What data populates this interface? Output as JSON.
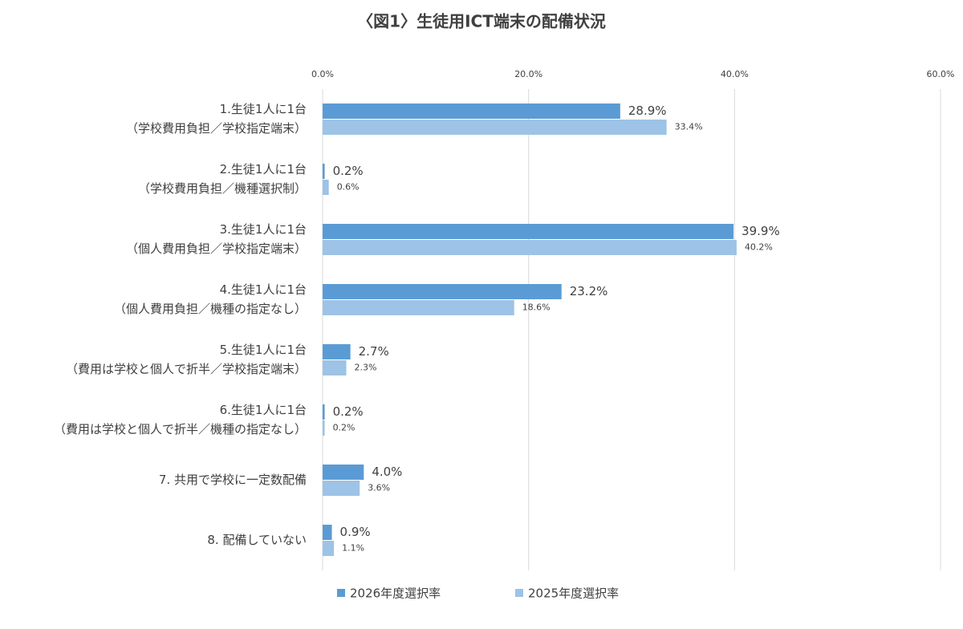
{
  "chart_data": {
    "type": "barh",
    "title": "〈図1〉生徒用ICT端末の配備状況",
    "categories": [
      [
        "1.生徒1人に1台",
        "（学校費用負担／学校指定端末）"
      ],
      [
        "2.生徒1人に1台",
        "（学校費用負担／機種選択制）"
      ],
      [
        "3.生徒1人に1台",
        "（個人費用負担／学校指定端末）"
      ],
      [
        "4.生徒1人に1台",
        "（個人費用負担／機種の指定なし）"
      ],
      [
        "5.生徒1人に1台",
        "（費用は学校と個人で折半／学校指定端末）"
      ],
      [
        "6.生徒1人に1台",
        "（費用は学校と個人で折半／機種の指定なし）"
      ],
      [
        "7. 共用で学校に一定数配備"
      ],
      [
        "8. 配備していない"
      ]
    ],
    "series": [
      {
        "name": "2026年度選択率",
        "color": "#5b9bd5",
        "values": [
          28.9,
          0.2,
          39.9,
          23.2,
          2.7,
          0.2,
          4.0,
          0.9
        ],
        "value_labels": [
          "28.9%",
          "0.2%",
          "39.9%",
          "23.2%",
          "2.7%",
          "0.2%",
          "4.0%",
          "0.9%"
        ]
      },
      {
        "name": "2025年度選択率",
        "color": "#9dc3e6",
        "values": [
          33.4,
          0.6,
          40.2,
          18.6,
          2.3,
          0.2,
          3.6,
          1.1
        ],
        "value_labels": [
          "33.4%",
          "0.6%",
          "40.2%",
          "18.6%",
          "2.3%",
          "0.2%",
          "3.6%",
          "1.1%"
        ]
      }
    ],
    "xlim": [
      0,
      60
    ],
    "xticks": [
      {
        "value": 0,
        "label": "0.0%"
      },
      {
        "value": 20,
        "label": "20.0%"
      },
      {
        "value": 40,
        "label": "40.0%"
      },
      {
        "value": 60,
        "label": "60.0%"
      }
    ],
    "grid": true,
    "legend": "bottom"
  }
}
